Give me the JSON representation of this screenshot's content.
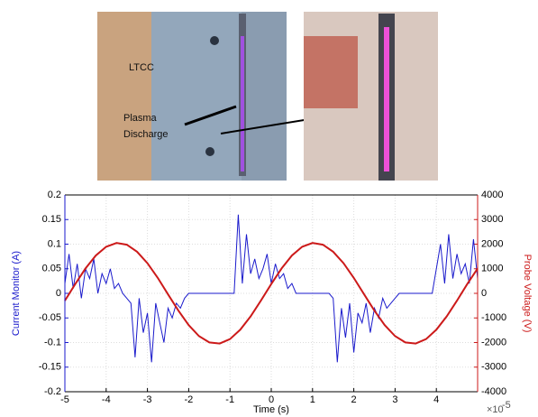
{
  "photo_labels": {
    "material": "LTCC",
    "plasma_line1": "Plasma",
    "plasma_line2": "Discharge"
  },
  "chart_data": {
    "type": "line",
    "x_label": "Time (s)",
    "x_multiplier": "×10",
    "x_multiplier_exponent": "-5",
    "y_label": "Current Monitor (A)",
    "y2_label": "Probe Voltage (V)",
    "xlim": [
      -5,
      5
    ],
    "xticks": [
      -5,
      -4,
      -3,
      -2,
      -1,
      0,
      1,
      2,
      3,
      4
    ],
    "ylim": [
      -0.2,
      0.2
    ],
    "yticks": [
      -0.2,
      -0.15,
      -0.1,
      -0.05,
      0,
      0.05,
      0.1,
      0.15,
      0.2
    ],
    "y2lim": [
      -4000,
      4000
    ],
    "y2ticks": [
      -4000,
      -3000,
      -2000,
      -1000,
      0,
      1000,
      2000,
      3000,
      4000
    ],
    "grid": true,
    "series": [
      {
        "color": "#1a1acc",
        "axis": "y",
        "x": [
          -5,
          -4.9,
          -4.8,
          -4.7,
          -4.6,
          -4.5,
          -4.4,
          -4.3,
          -4.2,
          -4.1,
          -4,
          -3.9,
          -3.8,
          -3.7,
          -3.6,
          -3.5,
          -3.4,
          -3.3,
          -3.2,
          -3.1,
          -3,
          -2.9,
          -2.8,
          -2.7,
          -2.6,
          -2.5,
          -2.4,
          -2.3,
          -2.2,
          -2.1,
          -2,
          -1.9,
          -1.8,
          -1.7,
          -1.6,
          -1.5,
          -1.4,
          -1.3,
          -1.2,
          -1.1,
          -1,
          -0.9,
          -0.8,
          -0.7,
          -0.6,
          -0.5,
          -0.4,
          -0.3,
          -0.2,
          -0.1,
          0,
          0.1,
          0.2,
          0.3,
          0.4,
          0.5,
          0.6,
          0.7,
          0.8,
          0.9,
          1,
          1.1,
          1.2,
          1.3,
          1.4,
          1.5,
          1.6,
          1.7,
          1.8,
          1.9,
          2,
          2.1,
          2.2,
          2.3,
          2.4,
          2.5,
          2.6,
          2.7,
          2.8,
          2.9,
          3,
          3.1,
          3.2,
          3.3,
          3.4,
          3.5,
          3.6,
          3.7,
          3.8,
          3.9,
          4,
          4.1,
          4.2,
          4.3,
          4.4,
          4.5,
          4.6,
          4.7,
          4.8,
          4.9,
          5
        ],
        "values": [
          0.02,
          0.08,
          0.01,
          0.06,
          -0.01,
          0.05,
          0.03,
          0.07,
          0,
          0.04,
          0.02,
          0.05,
          0.01,
          0.02,
          0,
          -0.01,
          -0.02,
          -0.13,
          -0.01,
          -0.08,
          -0.04,
          -0.14,
          -0.02,
          -0.06,
          -0.1,
          -0.03,
          -0.05,
          -0.02,
          -0.03,
          -0.01,
          0,
          0,
          0,
          0,
          0,
          0,
          0,
          0,
          0,
          0,
          0,
          0,
          0.16,
          0.02,
          0.12,
          0.04,
          0.07,
          0.03,
          0.05,
          0.08,
          0.02,
          0.06,
          0.03,
          0.04,
          0.01,
          0.02,
          0,
          0,
          0,
          0,
          0,
          0,
          0,
          0,
          0,
          -0.01,
          -0.14,
          -0.03,
          -0.09,
          -0.02,
          -0.12,
          -0.04,
          -0.06,
          -0.02,
          -0.08,
          -0.03,
          -0.05,
          -0.01,
          -0.03,
          -0.02,
          -0.01,
          0,
          0,
          0,
          0,
          0,
          0,
          0,
          0,
          0,
          0.05,
          0.1,
          0.02,
          0.12,
          0.03,
          0.08,
          0.04,
          0.06,
          0.02,
          0.11,
          0.03
        ]
      },
      {
        "color": "#cc1a1a",
        "axis": "y2",
        "x": [
          -5,
          -4.75,
          -4.5,
          -4.25,
          -4,
          -3.75,
          -3.5,
          -3.25,
          -3,
          -2.75,
          -2.5,
          -2.25,
          -2,
          -1.75,
          -1.5,
          -1.25,
          -1,
          -0.75,
          -0.5,
          -0.25,
          0,
          0.25,
          0.5,
          0.75,
          1,
          1.25,
          1.5,
          1.75,
          2,
          2.25,
          2.5,
          2.75,
          3,
          3.25,
          3.5,
          3.75,
          4,
          4.25,
          4.5,
          4.75,
          5
        ],
        "values": [
          -296,
          377,
          1012,
          1536,
          1894,
          2046,
          1977,
          1693,
          1225,
          627,
          -43,
          -704,
          -1292,
          -1739,
          -1997,
          -2039,
          -1860,
          -1479,
          -937,
          -296,
          377,
          1012,
          1536,
          1894,
          2046,
          1977,
          1693,
          1225,
          627,
          -43,
          -704,
          -1292,
          -1739,
          -1997,
          -2039,
          -1860,
          -1479,
          -937,
          -296,
          377,
          1012
        ]
      }
    ]
  }
}
